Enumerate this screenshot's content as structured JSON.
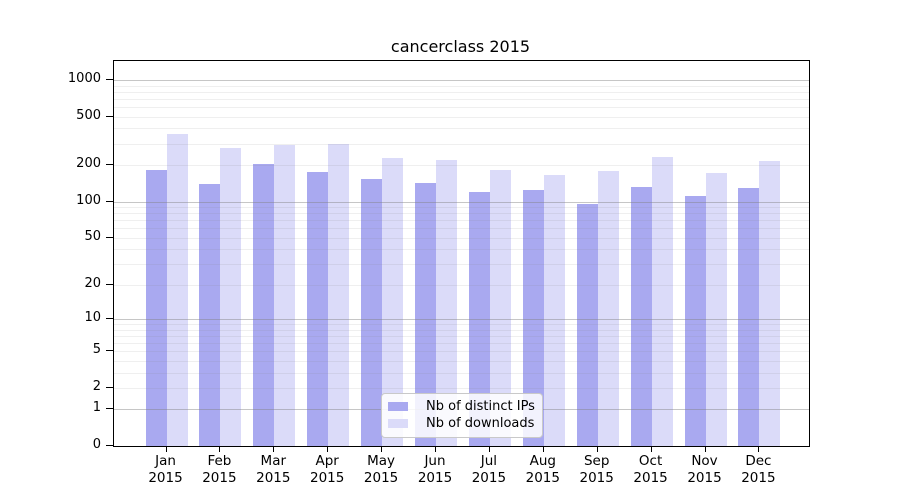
{
  "title": "cancerclass 2015",
  "colors": {
    "distinct_ips": "#a9a9f0",
    "downloads": "#dbdbf9",
    "axis": "#000000",
    "legend_border": "#c9c9c9"
  },
  "legend": {
    "items": [
      {
        "label": "Nb of distinct IPs",
        "color": "#a9a9f0"
      },
      {
        "label": "Nb of downloads",
        "color": "#dbdbf9"
      }
    ]
  },
  "chart_data": {
    "type": "bar",
    "title": "cancerclass 2015",
    "categories": [
      "Jan",
      "Feb",
      "Mar",
      "Apr",
      "May",
      "Jun",
      "Jul",
      "Aug",
      "Sep",
      "Oct",
      "Nov",
      "Dec"
    ],
    "year_label": "2015",
    "series": [
      {
        "name": "Nb of distinct IPs",
        "color": "#a9a9f0",
        "values": [
          181,
          140,
          203,
          176,
          153,
          142,
          121,
          124,
          95,
          132,
          111,
          129
        ]
      },
      {
        "name": "Nb of downloads",
        "color": "#dbdbf9",
        "values": [
          358,
          274,
          292,
          300,
          230,
          220,
          182,
          165,
          178,
          234,
          173,
          216
        ]
      }
    ],
    "xlabel": "",
    "ylabel": "",
    "y_axis": {
      "scale": "log10(value+1)",
      "tick_values": [
        1000,
        500,
        200,
        100,
        50,
        20,
        10,
        5,
        2,
        1,
        0
      ],
      "range_top": 1400
    },
    "grid": true,
    "gridlines_over_bars": true,
    "legend_position": "inside-bottom-center"
  }
}
